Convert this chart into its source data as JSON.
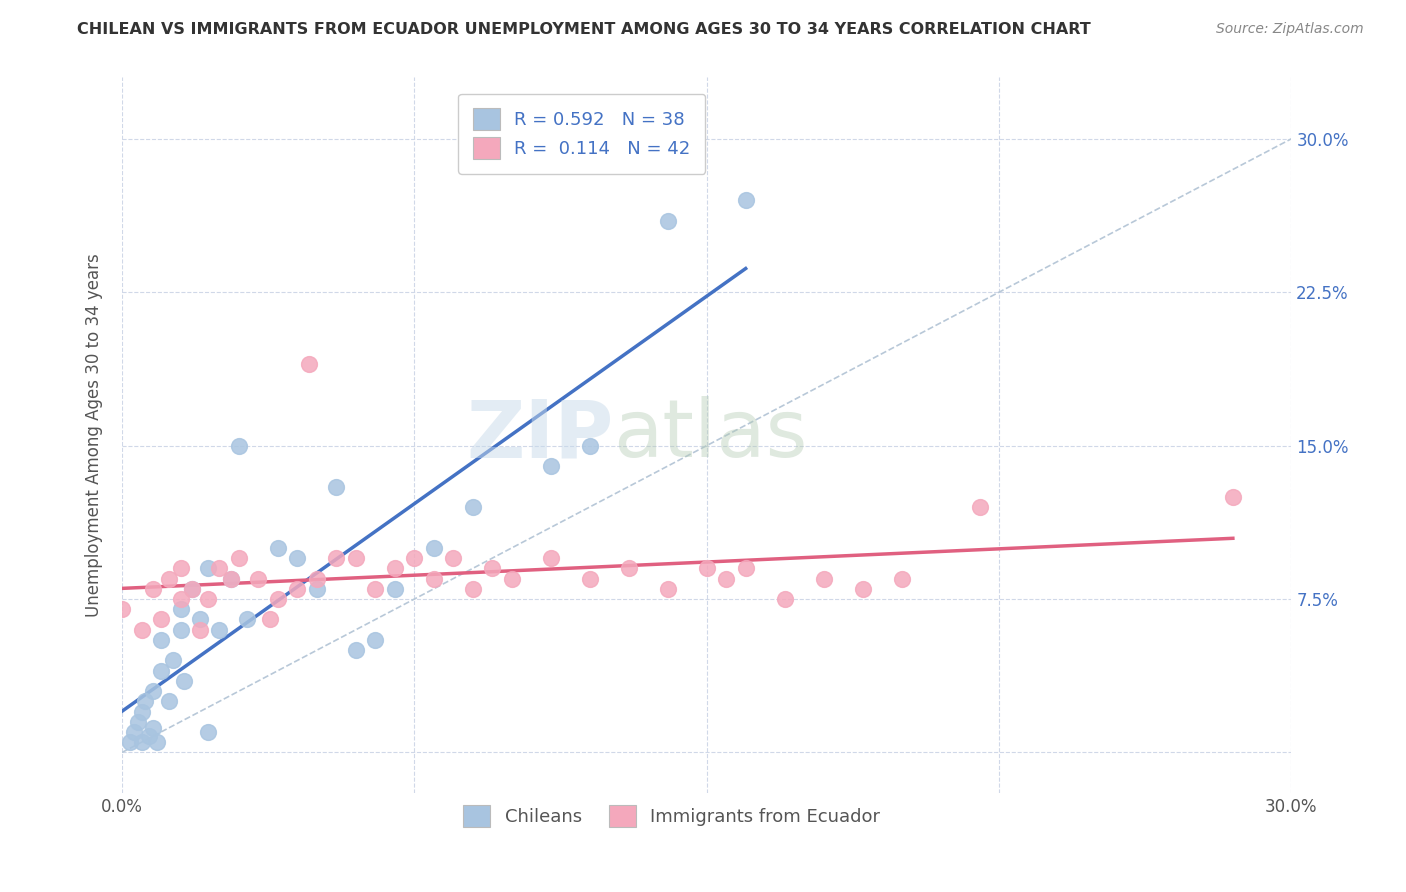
{
  "title": "CHILEAN VS IMMIGRANTS FROM ECUADOR UNEMPLOYMENT AMONG AGES 30 TO 34 YEARS CORRELATION CHART",
  "source": "Source: ZipAtlas.com",
  "ylabel": "Unemployment Among Ages 30 to 34 years",
  "xlim": [
    0.0,
    0.3
  ],
  "ylim": [
    -0.02,
    0.33
  ],
  "xticks": [
    0.0,
    0.075,
    0.15,
    0.225,
    0.3
  ],
  "xticklabels": [
    "0.0%",
    "",
    "",
    "",
    "30.0%"
  ],
  "yticks": [
    0.0,
    0.075,
    0.15,
    0.225,
    0.3
  ],
  "yticklabels_right": [
    "",
    "7.5%",
    "15.0%",
    "22.5%",
    "30.0%"
  ],
  "chilean_R": 0.592,
  "chilean_N": 38,
  "ecuador_R": 0.114,
  "ecuador_N": 42,
  "chilean_color": "#a8c4e0",
  "ecuador_color": "#f4a8bc",
  "trendline_chilean_color": "#4472c4",
  "trendline_ecuador_color": "#e06080",
  "diagonal_color": "#b8c8d8",
  "background_color": "#ffffff",
  "chilean_x": [
    0.002,
    0.003,
    0.004,
    0.005,
    0.005,
    0.006,
    0.007,
    0.008,
    0.008,
    0.009,
    0.01,
    0.01,
    0.012,
    0.013,
    0.015,
    0.015,
    0.016,
    0.018,
    0.02,
    0.022,
    0.022,
    0.025,
    0.028,
    0.03,
    0.032,
    0.04,
    0.045,
    0.05,
    0.055,
    0.06,
    0.065,
    0.07,
    0.08,
    0.09,
    0.11,
    0.12,
    0.14,
    0.16
  ],
  "chilean_y": [
    0.005,
    0.01,
    0.015,
    0.005,
    0.02,
    0.025,
    0.008,
    0.012,
    0.03,
    0.005,
    0.04,
    0.055,
    0.025,
    0.045,
    0.06,
    0.07,
    0.035,
    0.08,
    0.065,
    0.09,
    0.01,
    0.06,
    0.085,
    0.15,
    0.065,
    0.1,
    0.095,
    0.08,
    0.13,
    0.05,
    0.055,
    0.08,
    0.1,
    0.12,
    0.14,
    0.15,
    0.26,
    0.27
  ],
  "ecuador_x": [
    0.0,
    0.005,
    0.008,
    0.01,
    0.012,
    0.015,
    0.015,
    0.018,
    0.02,
    0.022,
    0.025,
    0.028,
    0.03,
    0.035,
    0.038,
    0.04,
    0.045,
    0.048,
    0.05,
    0.055,
    0.06,
    0.065,
    0.07,
    0.075,
    0.08,
    0.085,
    0.09,
    0.095,
    0.1,
    0.11,
    0.12,
    0.13,
    0.14,
    0.15,
    0.155,
    0.16,
    0.17,
    0.18,
    0.19,
    0.2,
    0.22,
    0.285
  ],
  "ecuador_y": [
    0.07,
    0.06,
    0.08,
    0.065,
    0.085,
    0.075,
    0.09,
    0.08,
    0.06,
    0.075,
    0.09,
    0.085,
    0.095,
    0.085,
    0.065,
    0.075,
    0.08,
    0.19,
    0.085,
    0.095,
    0.095,
    0.08,
    0.09,
    0.095,
    0.085,
    0.095,
    0.08,
    0.09,
    0.085,
    0.095,
    0.085,
    0.09,
    0.08,
    0.09,
    0.085,
    0.09,
    0.075,
    0.085,
    0.08,
    0.085,
    0.12,
    0.125
  ],
  "legend_labels": [
    "Chileans",
    "Immigrants from Ecuador"
  ]
}
